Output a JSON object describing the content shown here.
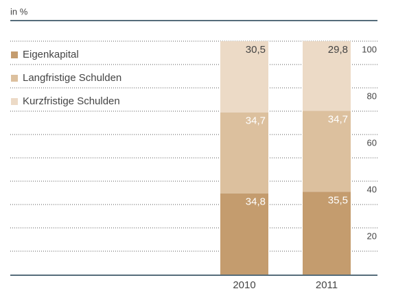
{
  "chart_data": {
    "type": "stacked_bar",
    "title": "in %",
    "categories": [
      "2010",
      "2011"
    ],
    "series": [
      {
        "name": "Eigenkapital",
        "color": "#c49c6e",
        "values": [
          34.8,
          35.5
        ],
        "value_labels": [
          "34,8",
          "35,5"
        ]
      },
      {
        "name": "Langfristige Schulden",
        "color": "#dcc09e",
        "values": [
          34.7,
          34.7
        ],
        "value_labels": [
          "34,7",
          "34,7"
        ]
      },
      {
        "name": "Kurzfristige Schulden",
        "color": "#ecdac6",
        "values": [
          30.5,
          29.8
        ],
        "value_labels": [
          "30,5",
          "29,8"
        ]
      }
    ],
    "ylim": [
      0,
      100
    ],
    "yticks": [
      20,
      40,
      60,
      80,
      100
    ],
    "minor_yticks": [
      10,
      30,
      50,
      70,
      90
    ],
    "grid": true
  }
}
